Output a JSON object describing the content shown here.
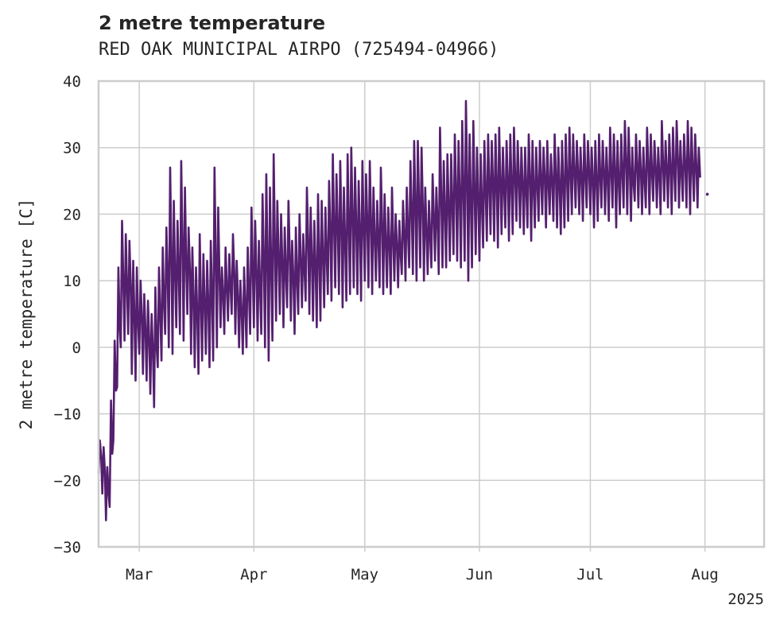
{
  "chart_data": {
    "type": "line",
    "title": "2 metre temperature",
    "subtitle": "RED OAK MUNICIPAL AIRPO (725494-04966)",
    "xlabel": "",
    "ylabel": "2 metre temperature [C]",
    "ylim": [
      -30,
      40
    ],
    "xlim": [
      "2025-02-18",
      "2025-08-17"
    ],
    "yticks": [
      -30,
      -20,
      -10,
      0,
      10,
      20,
      30,
      40
    ],
    "ytick_labels": [
      "−30",
      "−20",
      "−10",
      "0",
      "10",
      "20",
      "30",
      "40"
    ],
    "xticks": [
      "2025-03-01",
      "2025-04-01",
      "2025-05-01",
      "2025-06-01",
      "2025-07-01",
      "2025-08-01"
    ],
    "xtick_labels": [
      "Mar",
      "Apr",
      "May",
      "Jun",
      "Jul",
      "Aug"
    ],
    "x_offset_label": "2025",
    "grid": true,
    "line_color": "#541f6e",
    "series": [
      {
        "x": [
          "2025-02-18",
          "2025-02-19",
          "2025-02-20",
          "2025-02-21",
          "2025-02-22",
          "2025-02-23",
          "2025-02-24",
          "2025-02-25",
          "2025-02-26",
          "2025-02-27",
          "2025-02-28",
          "2025-03-01",
          "2025-03-02",
          "2025-03-03",
          "2025-03-04",
          "2025-03-05",
          "2025-03-06",
          "2025-03-07",
          "2025-03-08",
          "2025-03-09",
          "2025-03-10",
          "2025-03-11",
          "2025-03-12",
          "2025-03-13",
          "2025-03-14",
          "2025-03-15",
          "2025-03-16",
          "2025-03-17",
          "2025-03-18",
          "2025-03-19",
          "2025-03-20",
          "2025-03-21",
          "2025-03-22",
          "2025-03-23",
          "2025-03-24",
          "2025-03-25",
          "2025-03-26",
          "2025-03-27",
          "2025-03-28",
          "2025-03-29",
          "2025-03-30",
          "2025-03-31",
          "2025-04-01",
          "2025-04-02",
          "2025-04-03",
          "2025-04-04",
          "2025-04-05",
          "2025-04-06",
          "2025-04-07",
          "2025-04-08",
          "2025-04-09",
          "2025-04-10",
          "2025-04-11",
          "2025-04-12",
          "2025-04-13",
          "2025-04-14",
          "2025-04-15",
          "2025-04-16",
          "2025-04-17",
          "2025-04-18",
          "2025-04-19",
          "2025-04-20",
          "2025-04-21",
          "2025-04-22",
          "2025-04-23",
          "2025-04-24",
          "2025-04-25",
          "2025-04-26",
          "2025-04-27",
          "2025-04-28",
          "2025-04-29",
          "2025-04-30",
          "2025-05-01",
          "2025-05-02",
          "2025-05-03",
          "2025-05-04",
          "2025-05-05",
          "2025-05-06",
          "2025-05-07",
          "2025-05-08",
          "2025-05-09",
          "2025-05-10",
          "2025-05-11",
          "2025-05-12",
          "2025-05-13",
          "2025-05-14",
          "2025-05-15",
          "2025-05-16",
          "2025-05-17",
          "2025-05-18",
          "2025-05-19",
          "2025-05-20",
          "2025-05-21",
          "2025-05-22",
          "2025-05-23",
          "2025-05-24",
          "2025-05-25",
          "2025-05-26",
          "2025-05-27",
          "2025-05-28",
          "2025-05-29",
          "2025-05-30",
          "2025-05-31",
          "2025-06-01",
          "2025-06-02",
          "2025-06-03",
          "2025-06-04",
          "2025-06-05",
          "2025-06-06",
          "2025-06-07",
          "2025-06-08",
          "2025-06-09",
          "2025-06-10",
          "2025-06-11",
          "2025-06-12",
          "2025-06-13",
          "2025-06-14",
          "2025-06-15",
          "2025-06-16",
          "2025-06-17",
          "2025-06-18",
          "2025-06-19",
          "2025-06-20",
          "2025-06-21",
          "2025-06-22",
          "2025-06-23",
          "2025-06-24",
          "2025-06-25",
          "2025-06-26",
          "2025-06-27",
          "2025-06-28",
          "2025-06-29",
          "2025-06-30",
          "2025-07-01",
          "2025-07-02",
          "2025-07-03",
          "2025-07-04",
          "2025-07-05",
          "2025-07-06",
          "2025-07-07",
          "2025-07-08",
          "2025-07-09",
          "2025-07-10",
          "2025-07-11",
          "2025-07-12",
          "2025-07-13",
          "2025-07-14",
          "2025-07-15",
          "2025-07-16",
          "2025-07-17",
          "2025-07-18",
          "2025-07-19",
          "2025-07-20",
          "2025-07-21",
          "2025-07-22",
          "2025-07-23",
          "2025-07-24",
          "2025-07-25",
          "2025-07-26",
          "2025-07-27",
          "2025-07-28",
          "2025-07-29",
          "2025-07-30",
          "2025-07-31"
        ],
        "min": [
          -19,
          -22,
          -26,
          -24,
          -14,
          -6,
          0,
          1,
          2,
          -4,
          -5,
          -1,
          -4,
          -5,
          -7,
          -9,
          -3,
          -2,
          2,
          0,
          -1,
          3,
          2,
          1,
          5,
          -1,
          -3,
          -4,
          -2,
          -1,
          -3,
          -2,
          0,
          3,
          2,
          4,
          5,
          2,
          0,
          -1,
          0,
          2,
          3,
          1,
          2,
          0,
          -2,
          1,
          4,
          5,
          3,
          6,
          4,
          2,
          5,
          6,
          7,
          5,
          4,
          3,
          4,
          6,
          8,
          7,
          9,
          8,
          6,
          7,
          8,
          9,
          8,
          7,
          10,
          9,
          8,
          10,
          9,
          8,
          9,
          8,
          10,
          9,
          11,
          10,
          12,
          11,
          10,
          12,
          10,
          11,
          12,
          13,
          11,
          12,
          12,
          13,
          14,
          13,
          12,
          13,
          10,
          12,
          14,
          13,
          15,
          16,
          17,
          16,
          15,
          17,
          18,
          16,
          17,
          19,
          18,
          17,
          18,
          16,
          18,
          19,
          20,
          18,
          20,
          19,
          18,
          17,
          18,
          19,
          20,
          21,
          20,
          19,
          21,
          20,
          18,
          19,
          21,
          20,
          19,
          21,
          18,
          20,
          21,
          20,
          19,
          22,
          21,
          20,
          21,
          20,
          22,
          21,
          20,
          22,
          21,
          20,
          22,
          21,
          22,
          21,
          20,
          22,
          21
        ],
        "max": [
          -14,
          -15,
          -18,
          -8,
          1,
          12,
          19,
          17,
          16,
          13,
          12,
          10,
          8,
          7,
          5,
          9,
          12,
          15,
          18,
          27,
          22,
          19,
          28,
          24,
          18,
          15,
          12,
          17,
          14,
          13,
          16,
          27,
          21,
          12,
          15,
          14,
          17,
          13,
          10,
          12,
          15,
          21,
          19,
          16,
          23,
          26,
          24,
          29,
          22,
          20,
          18,
          22,
          16,
          18,
          20,
          17,
          24,
          21,
          19,
          23,
          22,
          21,
          25,
          29,
          26,
          28,
          24,
          29,
          30,
          27,
          25,
          28,
          26,
          28,
          24,
          22,
          27,
          23,
          21,
          24,
          20,
          19,
          22,
          24,
          28,
          31,
          31,
          30,
          24,
          22,
          26,
          24,
          33,
          28,
          29,
          29,
          32,
          31,
          34,
          37,
          32,
          34,
          30,
          29,
          31,
          32,
          31,
          32,
          33,
          30,
          31,
          32,
          33,
          31,
          30,
          30,
          32,
          31,
          30,
          31,
          30,
          31,
          29,
          32,
          30,
          31,
          32,
          33,
          32,
          31,
          30,
          32,
          31,
          30,
          31,
          32,
          31,
          30,
          33,
          32,
          31,
          32,
          34,
          33,
          30,
          32,
          31,
          30,
          33,
          32,
          31,
          30,
          34,
          31,
          32,
          33,
          34,
          31,
          32,
          34,
          33,
          32,
          30,
          33,
          31
        ]
      }
    ],
    "isolated_point": {
      "x": "2025-08-01",
      "y": 23
    }
  }
}
